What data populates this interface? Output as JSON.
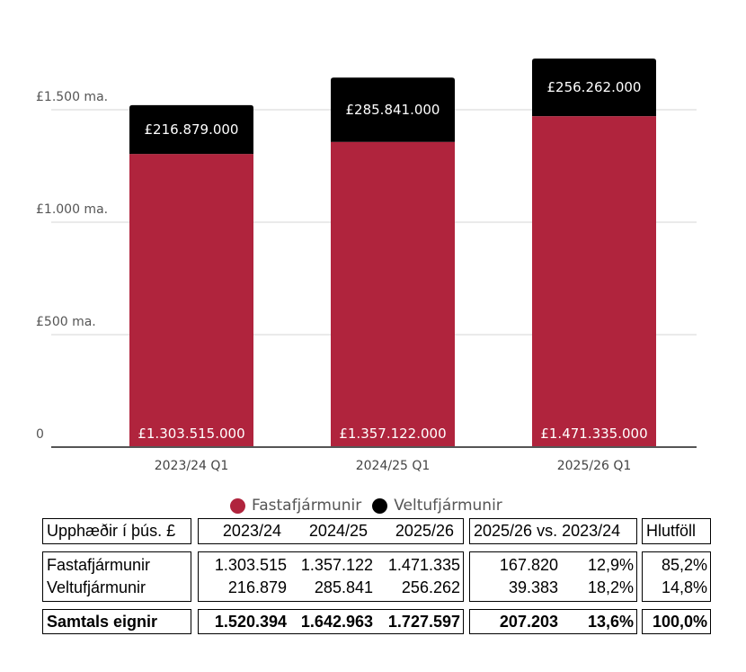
{
  "chart_data": {
    "type": "bar",
    "stacked": true,
    "categories": [
      "2023/24 Q1",
      "2024/25 Q1",
      "2025/26 Q1"
    ],
    "series": [
      {
        "name": "Fastafjármunir",
        "color": "#b0243d",
        "values": [
          1303.515,
          1357.122,
          1471.335
        ],
        "labels": [
          "£1.303.515.000",
          "£1.357.122.000",
          "£1.471.335.000"
        ]
      },
      {
        "name": "Veltufjármunir",
        "color": "#000000",
        "values": [
          216.879,
          285.841,
          256.262
        ],
        "labels": [
          "£216.879.000",
          "£285.841.000",
          "£256.262.000"
        ]
      }
    ],
    "ylabel": "",
    "xlabel": "",
    "ylim": [
      0,
      1500
    ],
    "yticks": [
      0,
      500,
      1000,
      1500
    ],
    "ytick_labels": [
      "0",
      "£500 ma.",
      "£1.000 ma.",
      "£1.500 ma."
    ],
    "grid": true,
    "legend": "bottom"
  },
  "table": {
    "header": {
      "label": "Upphæðir í þús. £",
      "years": [
        "2023/24",
        "2024/25",
        "2025/26"
      ],
      "change": "2025/26 vs. 2023/24",
      "share": "Hlutföll"
    },
    "rows": [
      {
        "label": "Fastafjármunir",
        "values": [
          "1.303.515",
          "1.357.122",
          "1.471.335"
        ],
        "change_abs": "167.820",
        "change_pct": "12,9%",
        "share": "85,2%"
      },
      {
        "label": "Veltufjármunir",
        "values": [
          "216.879",
          "285.841",
          "256.262"
        ],
        "change_abs": "39.383",
        "change_pct": "18,2%",
        "share": "14,8%"
      }
    ],
    "total": {
      "label": "Samtals eignir",
      "values": [
        "1.520.394",
        "1.642.963",
        "1.727.597"
      ],
      "change_abs": "207.203",
      "change_pct": "13,6%",
      "share": "100,0%"
    }
  }
}
